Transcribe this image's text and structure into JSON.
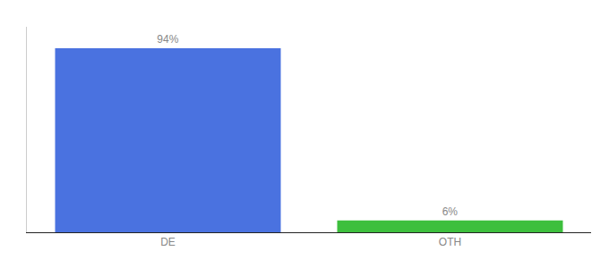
{
  "chart_data": {
    "type": "bar",
    "categories": [
      "DE",
      "OTH"
    ],
    "values": [
      94,
      6
    ],
    "value_labels": [
      "94%",
      "6%"
    ],
    "colors": [
      "#4a72e0",
      "#3dbf3d"
    ],
    "ylim": [
      0,
      105
    ],
    "yticks": [],
    "grid": false,
    "data_labels": true,
    "tick_labels": "x"
  }
}
